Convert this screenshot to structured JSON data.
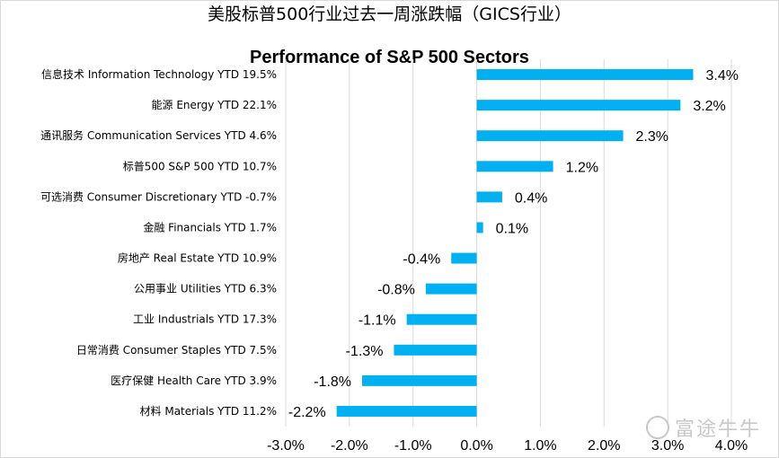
{
  "chart_data": {
    "type": "bar",
    "orientation": "horizontal",
    "title": "美股标普500行业过去一周涨跌幅（GICS行业）",
    "subtitle": "Performance of S&P 500 Sectors",
    "categories": [
      "信息技术 Information Technology YTD 19.5%",
      "能源 Energy YTD 22.1%",
      "通讯服务 Communication Services YTD 4.6%",
      "标普500 S&P 500 YTD 10.7%",
      "可选消费 Consumer Discretionary YTD -0.7%",
      "金融 Financials YTD 1.7%",
      "房地产 Real Estate YTD 10.9%",
      "公用事业 Utilities YTD 6.3%",
      "工业 Industrials YTD 17.3%",
      "日常消费 Consumer Staples YTD 7.5%",
      "医疗保健 Health Care YTD 3.9%",
      "材料 Materials YTD 11.2%"
    ],
    "values": [
      3.4,
      3.2,
      2.3,
      1.2,
      0.4,
      0.1,
      -0.4,
      -0.8,
      -1.1,
      -1.3,
      -1.8,
      -2.2
    ],
    "data_labels": [
      "3.4%",
      "3.2%",
      "2.3%",
      "1.2%",
      "0.4%",
      "0.1%",
      "-0.4%",
      "-0.8%",
      "-1.1%",
      "-1.3%",
      "-1.8%",
      "-2.2%"
    ],
    "xlim": [
      -3.0,
      4.0
    ],
    "xticks": [
      -3.0,
      -2.0,
      -1.0,
      0.0,
      1.0,
      2.0,
      3.0,
      4.0
    ],
    "xtick_labels": [
      "-3.0%",
      "-2.0%",
      "-1.0%",
      "0.0%",
      "1.0%",
      "2.0%",
      "3.0%",
      "4.0%"
    ],
    "grid": "vertical",
    "legend": "none",
    "bar_color": "#00b0f0",
    "grid_color": "#d9d9d9"
  },
  "watermark": {
    "text": "富途牛牛"
  }
}
